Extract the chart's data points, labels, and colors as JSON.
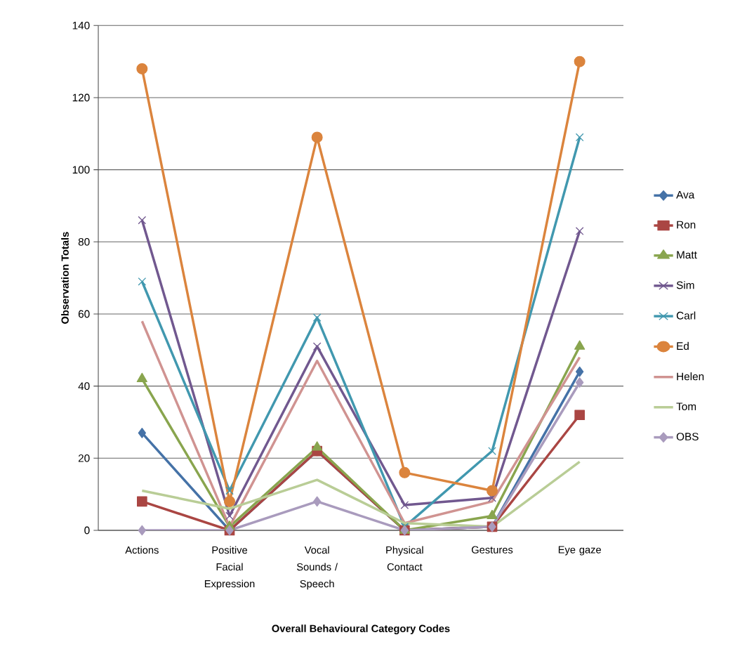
{
  "chart_data": {
    "type": "line",
    "xlabel": "Overall Behavioural Category Codes",
    "ylabel": "Observation Totals",
    "categories": [
      "Actions",
      "Positive Facial Expression",
      "Vocal Sounds / Speech",
      "Physical Contact",
      "Gestures",
      "Eye gaze"
    ],
    "ylim": [
      0,
      140
    ],
    "yticks": [
      0,
      20,
      40,
      60,
      80,
      100,
      120,
      140
    ],
    "grid": "y",
    "legend": "right",
    "series": [
      {
        "name": "Ava",
        "color": "#4572a7",
        "marker": "diamond",
        "values": [
          27,
          0,
          22,
          0,
          1,
          44
        ]
      },
      {
        "name": "Ron",
        "color": "#aa4643",
        "marker": "square",
        "values": [
          8,
          0,
          22,
          0,
          1,
          32
        ]
      },
      {
        "name": "Matt",
        "color": "#89a54e",
        "marker": "triangle",
        "values": [
          42,
          1,
          23,
          0,
          4,
          51
        ]
      },
      {
        "name": "Sim",
        "color": "#71588f",
        "marker": "cross",
        "values": [
          86,
          4,
          51,
          7,
          9,
          83
        ]
      },
      {
        "name": "Carl",
        "color": "#4198af",
        "marker": "cross",
        "values": [
          69,
          11,
          59,
          1,
          22,
          109
        ]
      },
      {
        "name": "Ed",
        "color": "#db843d",
        "marker": "circle",
        "values": [
          128,
          8,
          109,
          16,
          11,
          130
        ]
      },
      {
        "name": "Helen",
        "color": "#d09391",
        "marker": "none",
        "values": [
          58,
          1,
          47,
          2,
          8,
          48
        ]
      },
      {
        "name": "Tom",
        "color": "#b9cd96",
        "marker": "none",
        "values": [
          11,
          6,
          14,
          2,
          1,
          19
        ]
      },
      {
        "name": "OBS",
        "color": "#a99bbd",
        "marker": "diamond",
        "values": [
          0,
          0,
          8,
          0,
          1,
          41
        ]
      }
    ]
  }
}
